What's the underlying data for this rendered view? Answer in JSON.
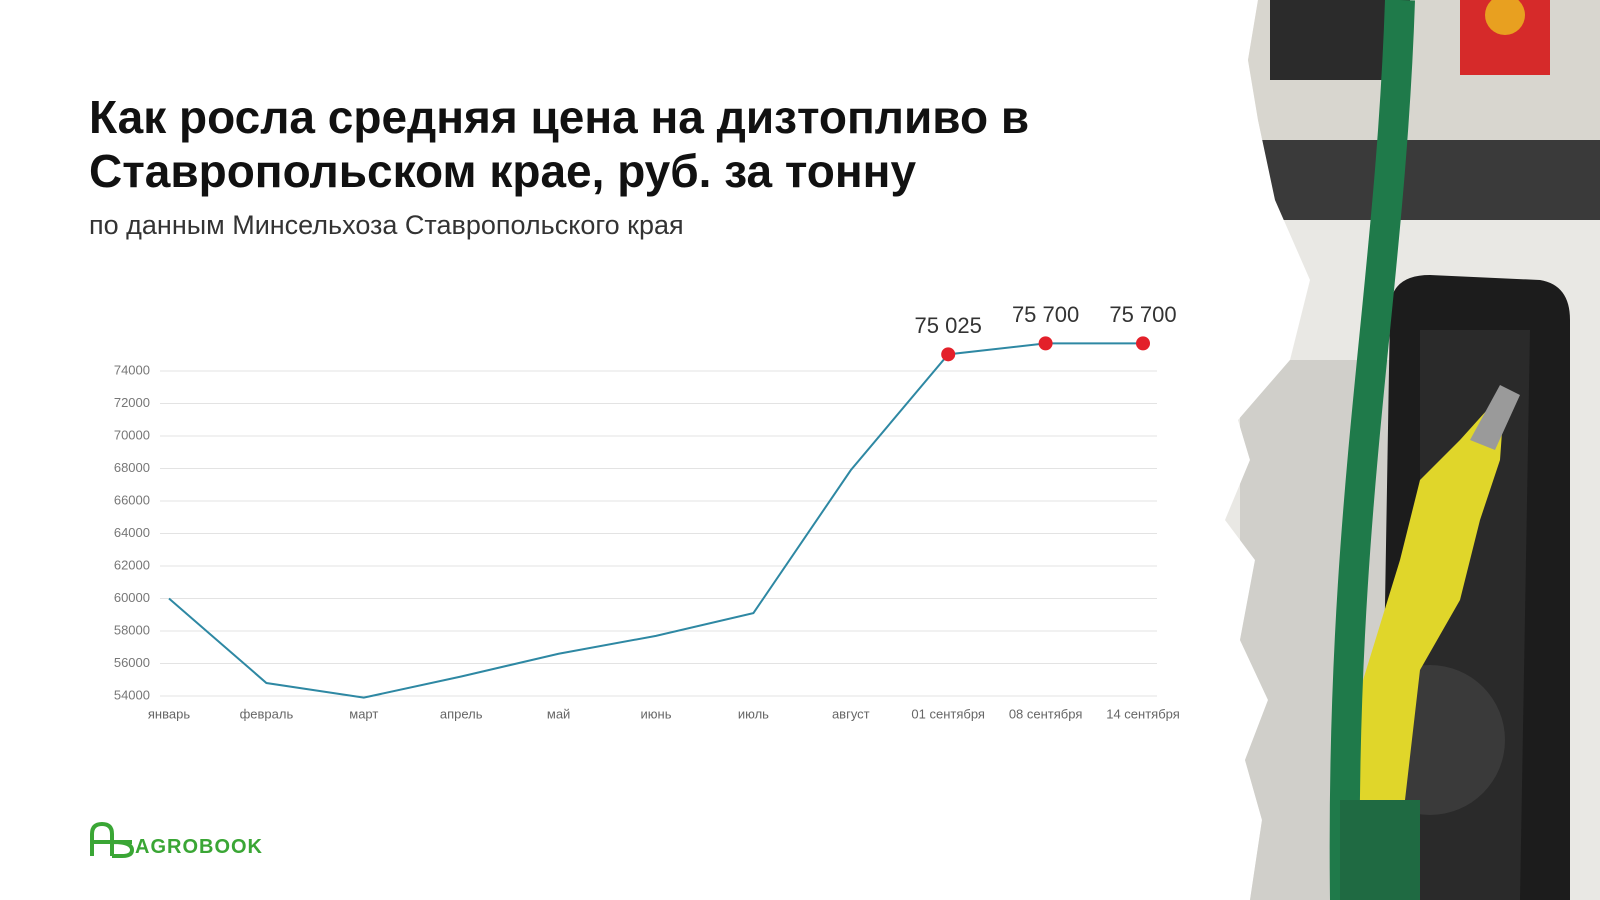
{
  "chart_data": {
    "type": "line",
    "title": "Как росла средняя цена на дизтопливо в Ставропольском крае, руб. за тонну",
    "subtitle": "по данным Минсельхоза Ставропольского края",
    "categories": [
      "январь",
      "февраль",
      "март",
      "апрель",
      "май",
      "июнь",
      "июль",
      "август",
      "01 сентября",
      "08 сентября",
      "14 сентября"
    ],
    "series": [
      {
        "name": "Средняя цена",
        "color": "#2e88a3",
        "marker_color": "#e3202a",
        "values": [
          60000,
          54800,
          53900,
          55200,
          56600,
          57700,
          59100,
          67900,
          75025,
          75700,
          75700
        ],
        "value_labels": [
          null,
          null,
          null,
          null,
          null,
          null,
          null,
          null,
          "75 025",
          "75 700",
          "75 700"
        ]
      }
    ],
    "ylim": [
      54000,
      74000
    ],
    "yticks": [
      54000,
      56000,
      58000,
      60000,
      62000,
      64000,
      66000,
      68000,
      70000,
      72000,
      74000
    ],
    "grid": true,
    "brand": "AGROBOOK"
  }
}
